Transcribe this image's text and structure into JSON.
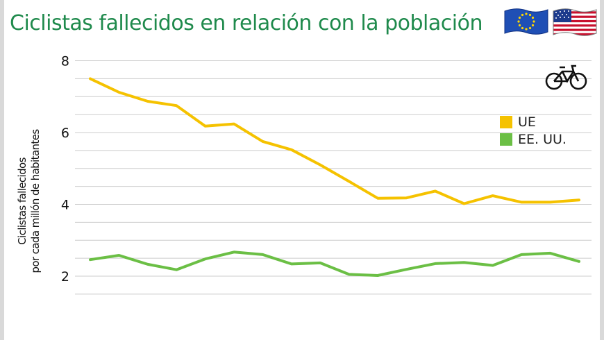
{
  "header": {
    "title": "Ciclistas fallecidos en relación con la población",
    "icons": [
      "eu-flag-icon",
      "us-flag-icon",
      "bicycle-icon"
    ]
  },
  "colors": {
    "eu": "#f5c200",
    "us": "#6bbf45",
    "title": "#1f8a4c",
    "grid": "#cccccc"
  },
  "legend": {
    "items": [
      {
        "label": "UE",
        "color": "#f5c200"
      },
      {
        "label": "EE. UU.",
        "color": "#6bbf45"
      }
    ]
  },
  "chart_data": {
    "type": "line",
    "title": "Ciclistas fallecidos en relación con la población",
    "ylabel_lines": [
      "Ciclistas fallecidos",
      "por cada millón de habitantes"
    ],
    "ylim": [
      1,
      8
    ],
    "yticks": [
      2,
      4,
      6,
      8
    ],
    "grid": true,
    "legend_position": "right",
    "x": [
      1,
      2,
      3,
      4,
      5,
      6,
      7,
      8,
      9,
      10,
      11,
      12,
      13,
      14,
      15,
      16,
      17,
      18
    ],
    "series": [
      {
        "name": "UE",
        "color": "#f5c200",
        "values": [
          7.5,
          7.12,
          6.87,
          6.75,
          6.18,
          6.24,
          5.75,
          5.52,
          5.1,
          4.64,
          4.17,
          4.18,
          4.37,
          4.02,
          4.24,
          4.06,
          4.06,
          4.12
        ]
      },
      {
        "name": "EE. UU.",
        "color": "#6bbf45",
        "values": [
          2.46,
          2.58,
          2.33,
          2.18,
          2.48,
          2.67,
          2.6,
          2.34,
          2.37,
          2.05,
          2.02,
          2.19,
          2.35,
          2.38,
          2.3,
          2.6,
          2.64,
          2.41
        ]
      }
    ]
  }
}
